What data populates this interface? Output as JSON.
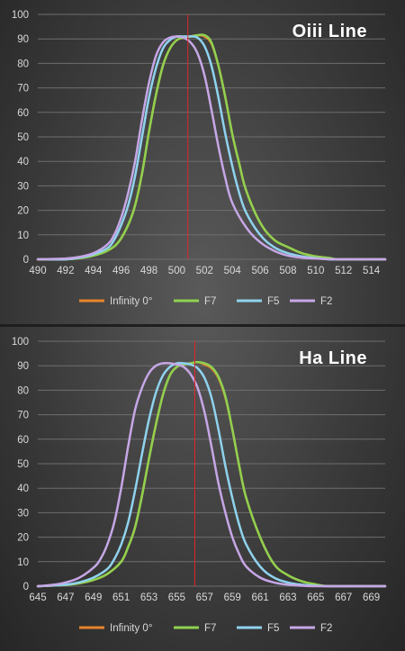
{
  "chart_data": [
    {
      "type": "line",
      "title": "Oiii Line",
      "xlabel": "",
      "ylabel": "",
      "xlim": [
        490,
        515
      ],
      "ylim": [
        0,
        100
      ],
      "x_ticks": [
        "490",
        "492",
        "494",
        "496",
        "498",
        "500",
        "502",
        "504",
        "506",
        "508",
        "510",
        "512",
        "514"
      ],
      "y_ticks": [
        "0",
        "10",
        "20",
        "30",
        "40",
        "50",
        "60",
        "70",
        "80",
        "90",
        "100"
      ],
      "grid": true,
      "legend_placement": "bottom",
      "reference_line_x": 500.8,
      "series": [
        {
          "name": "Infinity 0°",
          "color": "#e8842c",
          "width": 2.5,
          "x": [
            490,
            492,
            493,
            494,
            495,
            495.8,
            496.5,
            497,
            497.5,
            498,
            498.5,
            499,
            499.5,
            500,
            500.5,
            501,
            501.5,
            502,
            502.5,
            503,
            503.5,
            504,
            504.5,
            505,
            506,
            507,
            508,
            509,
            510,
            511,
            511.5,
            512,
            513,
            515
          ],
          "y": [
            0,
            0,
            0.5,
            1.5,
            3.5,
            7,
            14,
            22,
            35,
            52,
            67,
            79,
            86,
            89.5,
            90.5,
            91,
            91.5,
            91,
            88,
            79,
            66,
            51,
            39,
            28,
            15,
            8,
            5,
            2.5,
            1.2,
            0.5,
            0,
            0,
            0,
            0
          ]
        },
        {
          "name": "F7",
          "color": "#8fd14f",
          "width": 2.5,
          "x": [
            490,
            492,
            493,
            494,
            495,
            495.8,
            496.5,
            497,
            497.5,
            498,
            498.5,
            499,
            499.5,
            500,
            500.5,
            501,
            501.5,
            502,
            502.5,
            503,
            503.5,
            504,
            504.5,
            505,
            506,
            507,
            508,
            509,
            510,
            511,
            511.5,
            512,
            513,
            515
          ],
          "y": [
            0,
            0,
            0.5,
            1.5,
            3.5,
            7,
            14,
            22,
            35,
            52,
            67,
            79,
            86,
            89.5,
            90.5,
            91,
            91.5,
            91.5,
            88.5,
            79,
            66,
            51,
            39,
            28,
            15,
            8,
            5,
            2.5,
            1.2,
            0.5,
            0,
            0,
            0,
            0
          ]
        },
        {
          "name": "F5",
          "color": "#8fd3ee",
          "width": 2.5,
          "x": [
            490,
            492,
            493,
            494,
            495,
            495.5,
            496,
            496.5,
            497,
            497.5,
            498,
            498.5,
            499,
            499.5,
            500,
            500.5,
            501,
            501.5,
            502,
            502.5,
            503,
            503.5,
            504,
            504.5,
            505,
            506,
            507,
            508,
            509,
            510,
            511,
            511.5,
            512,
            513,
            515
          ],
          "y": [
            0,
            0,
            0.7,
            2,
            4.5,
            8,
            14,
            22,
            34,
            50,
            66,
            78,
            86,
            89.5,
            91,
            91,
            91,
            90.5,
            87,
            79,
            66,
            51,
            38,
            27,
            19,
            10,
            5,
            2.5,
            1.2,
            0.5,
            0,
            0,
            0,
            0,
            0
          ]
        },
        {
          "name": "F2",
          "color": "#c6a7e6",
          "width": 2.5,
          "x": [
            490,
            492,
            493,
            494,
            495,
            495.5,
            496,
            496.5,
            497,
            497.5,
            498,
            498.5,
            499,
            499.5,
            500,
            500.5,
            501,
            501.5,
            502,
            502.5,
            503,
            503.5,
            504,
            505,
            506,
            507,
            508,
            509,
            510,
            511,
            511.5,
            512,
            513,
            515
          ],
          "y": [
            0,
            0.3,
            1,
            2.5,
            6,
            10,
            17,
            27,
            40,
            57,
            72,
            83,
            88.5,
            90.5,
            91,
            90.5,
            88.5,
            84,
            75,
            61,
            46,
            33,
            23,
            13,
            7,
            3.5,
            1.5,
            0.7,
            0.3,
            0,
            0,
            0,
            0,
            0
          ]
        }
      ]
    },
    {
      "type": "line",
      "title": "Ha Line",
      "xlabel": "",
      "ylabel": "",
      "xlim": [
        645,
        670
      ],
      "ylim": [
        0,
        100
      ],
      "x_ticks": [
        "645",
        "647",
        "649",
        "651",
        "653",
        "655",
        "657",
        "659",
        "661",
        "663",
        "665",
        "667",
        "669"
      ],
      "y_ticks": [
        "0",
        "10",
        "20",
        "30",
        "40",
        "50",
        "60",
        "70",
        "80",
        "90",
        "100"
      ],
      "grid": true,
      "legend_placement": "bottom",
      "reference_line_x": 656.3,
      "series": [
        {
          "name": "Infinity 0°",
          "color": "#e8842c",
          "width": 2.5,
          "x": [
            645,
            647,
            648,
            649,
            650,
            651,
            651.5,
            652,
            652.5,
            653,
            653.5,
            654,
            654.5,
            655,
            655.5,
            656,
            656.5,
            657,
            657.5,
            658,
            658.5,
            659,
            659.5,
            660,
            661,
            662,
            663,
            664,
            665,
            665.5,
            666,
            667,
            670
          ],
          "y": [
            0,
            0.5,
            1.2,
            2.5,
            5,
            10,
            16,
            24,
            37,
            52,
            66,
            78,
            86,
            89.5,
            90.5,
            91,
            91.5,
            90.5,
            89,
            85,
            77,
            64,
            49,
            36,
            20,
            9,
            4.5,
            2,
            0.7,
            0.2,
            0,
            0,
            0
          ]
        },
        {
          "name": "F7",
          "color": "#8fd14f",
          "width": 2.5,
          "x": [
            645,
            647,
            648,
            649,
            650,
            651,
            651.5,
            652,
            652.5,
            653,
            653.5,
            654,
            654.5,
            655,
            655.5,
            656,
            656.5,
            657,
            657.5,
            658,
            658.5,
            659,
            659.5,
            660,
            661,
            662,
            663,
            664,
            665,
            665.5,
            666,
            667,
            670
          ],
          "y": [
            0,
            0.5,
            1.2,
            2.5,
            5,
            10,
            16,
            24,
            37,
            52,
            66,
            78,
            86,
            89.5,
            90.5,
            91,
            91.5,
            91,
            89.5,
            85.5,
            77.5,
            64,
            49,
            36,
            20,
            9,
            4.5,
            2,
            0.7,
            0.2,
            0,
            0,
            0
          ]
        },
        {
          "name": "F5",
          "color": "#8fd3ee",
          "width": 2.5,
          "x": [
            645,
            647,
            648,
            649,
            650,
            650.5,
            651,
            651.5,
            652,
            652.5,
            653,
            653.5,
            654,
            654.5,
            655,
            655.5,
            656,
            656.5,
            657,
            657.5,
            658,
            658.5,
            659,
            659.5,
            660,
            661,
            662,
            663,
            664,
            665,
            666,
            670
          ],
          "y": [
            0,
            0.6,
            1.6,
            3.5,
            7,
            11,
            17,
            26,
            39,
            54,
            68,
            79,
            86,
            89.5,
            91,
            91,
            90.5,
            89,
            85,
            77,
            64,
            49,
            36,
            25,
            17,
            8,
            3.5,
            1.5,
            0.6,
            0.2,
            0,
            0
          ]
        },
        {
          "name": "F2",
          "color": "#c6a7e6",
          "width": 2.5,
          "x": [
            645,
            646,
            647,
            648,
            649,
            649.5,
            650,
            650.5,
            651,
            651.5,
            652,
            652.5,
            653,
            653.5,
            654,
            654.5,
            655,
            655.5,
            656,
            656.5,
            657,
            657.5,
            658,
            658.5,
            659,
            659.5,
            660,
            661,
            662,
            663,
            664,
            665,
            666,
            670
          ],
          "y": [
            0,
            0.5,
            1.5,
            3.5,
            7.5,
            11,
            17,
            26,
            40,
            57,
            72,
            81,
            87,
            90,
            91,
            91,
            90.5,
            89.5,
            86.5,
            81,
            71,
            57,
            42,
            30,
            20,
            13,
            8,
            3.5,
            1.5,
            0.6,
            0.2,
            0,
            0,
            0
          ]
        }
      ]
    }
  ]
}
